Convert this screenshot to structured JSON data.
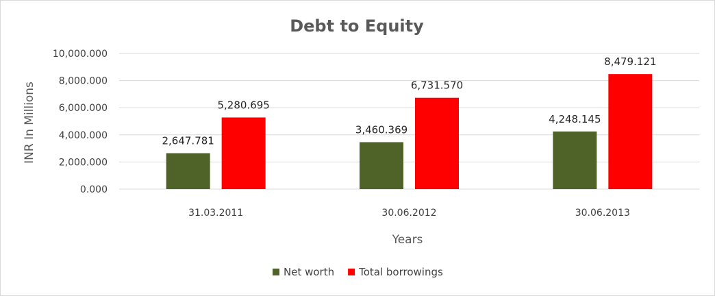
{
  "chart_data": {
    "type": "bar",
    "title": "Debt to Equity",
    "xlabel": "Years",
    "ylabel": "INR In Millions",
    "categories": [
      "31.03.2011",
      "30.06.2012",
      "30.06.2013"
    ],
    "series": [
      {
        "name": "Net worth",
        "color": "#4f6228",
        "values": [
          2647.781,
          3460.369,
          4248.145
        ],
        "labels": [
          "2,647.781",
          "3,460.369",
          "4,248.145"
        ]
      },
      {
        "name": "Total borrowings",
        "color": "#ff0000",
        "values": [
          5280.695,
          6731.57,
          8479.121
        ],
        "labels": [
          "5,280.695",
          "6,731.570",
          "8,479.121"
        ]
      }
    ],
    "ylim": [
      0,
      10000
    ],
    "yticks": [
      0,
      2000,
      4000,
      6000,
      8000,
      10000
    ],
    "ytick_labels": [
      "0.000",
      "2,000.000",
      "4,000.000",
      "6,000.000",
      "8,000.000",
      "10,000.000"
    ],
    "grid": true,
    "legend_position": "bottom"
  }
}
